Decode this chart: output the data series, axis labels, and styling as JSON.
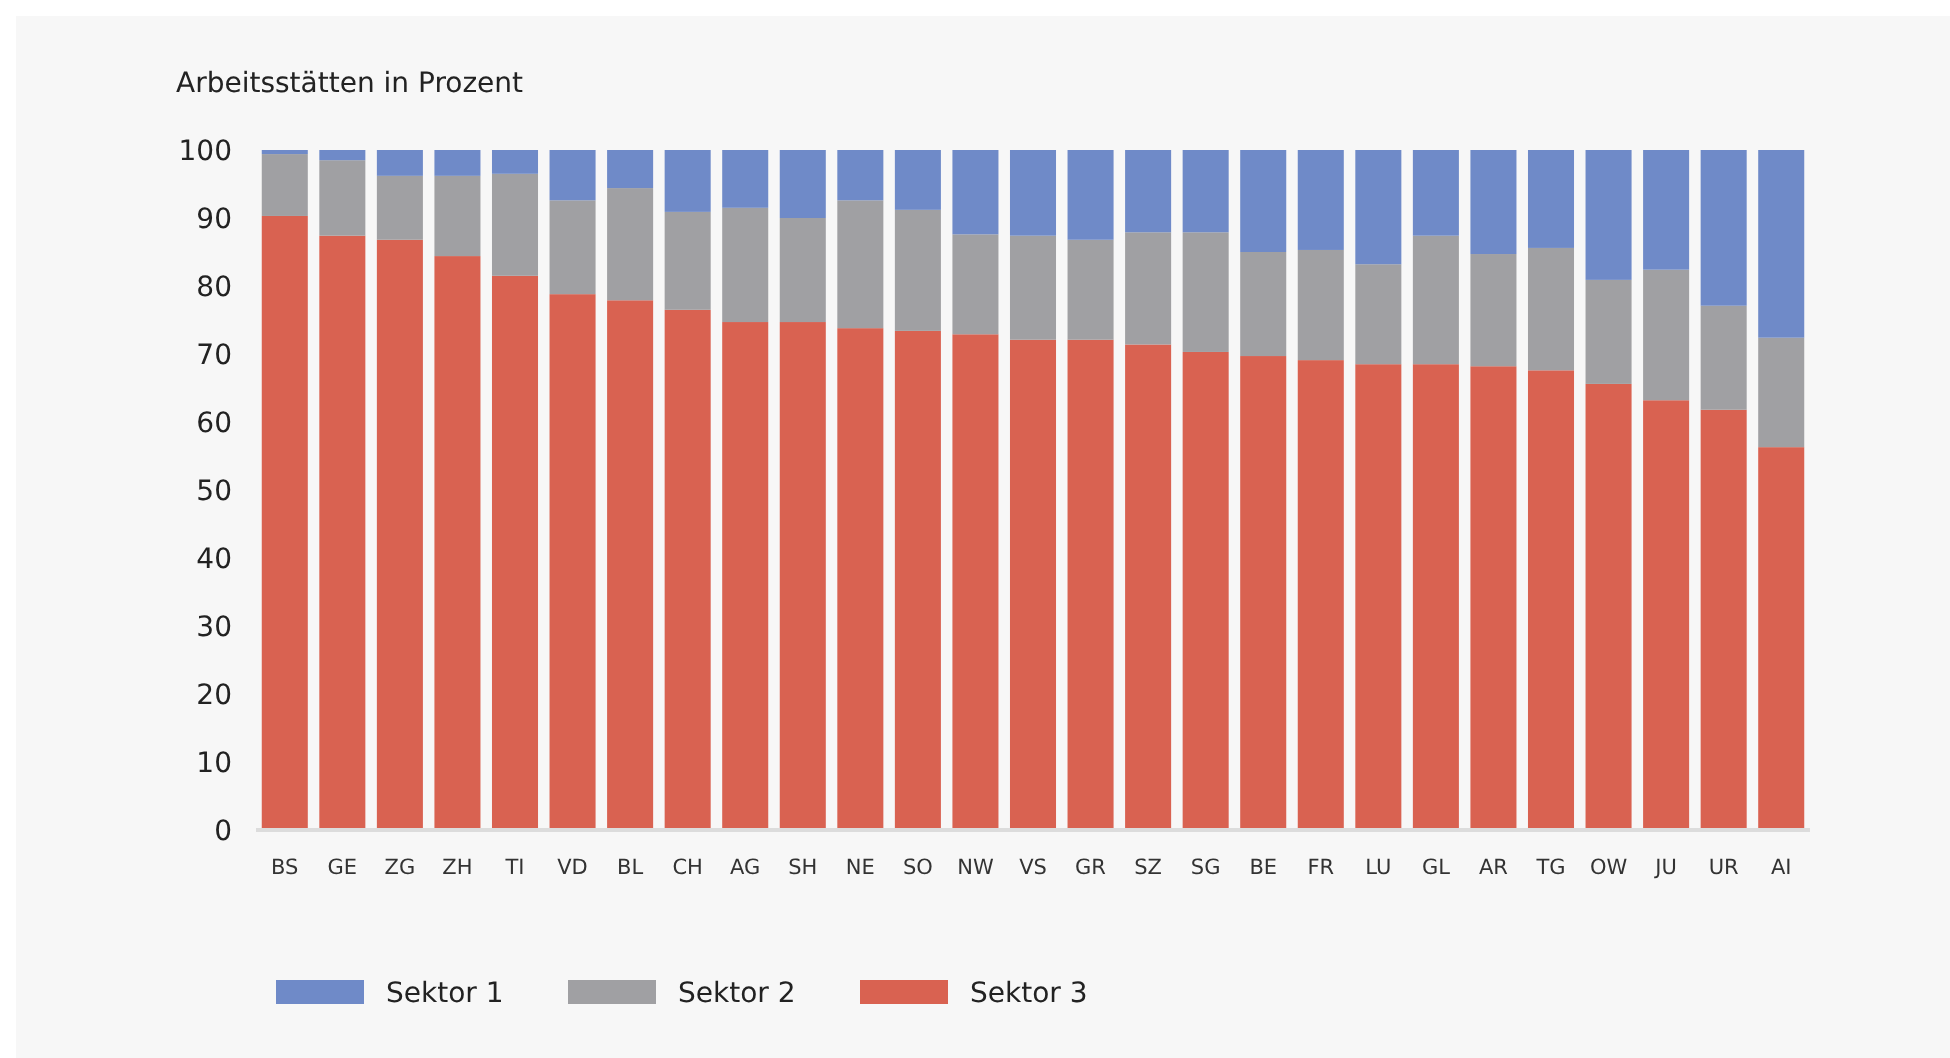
{
  "chart_data": {
    "type": "bar",
    "stacked": true,
    "title": "Arbeitsstätten in Prozent",
    "categories": [
      "BS",
      "GE",
      "ZG",
      "ZH",
      "TI",
      "VD",
      "BL",
      "CH",
      "AG",
      "SH",
      "NE",
      "SO",
      "NW",
      "VS",
      "GR",
      "SZ",
      "SG",
      "BE",
      "FR",
      "LU",
      "GL",
      "AR",
      "TG",
      "OW",
      "JU",
      "UR",
      "AI"
    ],
    "series": [
      {
        "name": "Sektor 3",
        "color": "#d96251",
        "values": [
          90.3,
          87.4,
          86.8,
          84.4,
          81.5,
          78.8,
          77.9,
          76.5,
          74.7,
          74.7,
          73.8,
          73.4,
          72.9,
          72.1,
          72.1,
          71.4,
          70.3,
          69.7,
          69.1,
          68.5,
          68.5,
          68.2,
          67.6,
          65.6,
          63.2,
          61.8,
          56.3
        ]
      },
      {
        "name": "Sektor 2",
        "color": "#a0a0a3",
        "values": [
          9.1,
          11.1,
          9.4,
          11.8,
          15,
          13.8,
          16.5,
          14.4,
          16.8,
          15.3,
          18.8,
          17.8,
          14.7,
          15.3,
          14.7,
          16.5,
          17.6,
          15.3,
          16.2,
          14.7,
          18.9,
          16.5,
          18,
          15.3,
          19.2,
          15.3,
          16.1
        ]
      },
      {
        "name": "Sektor 1",
        "color": "#6f8ac8",
        "values": [
          0.6,
          1.5,
          3.8,
          3.8,
          3.5,
          7.4,
          5.6,
          9.1,
          8.5,
          10,
          7.4,
          8.8,
          12.4,
          12.6,
          13.2,
          12.1,
          12.1,
          15,
          14.7,
          16.8,
          12.6,
          15.3,
          14.4,
          19.1,
          17.6,
          22.9,
          27.6
        ]
      }
    ],
    "ylim": [
      0,
      100
    ],
    "yticks": [
      0,
      10,
      20,
      30,
      40,
      50,
      60,
      70,
      80,
      90,
      100
    ],
    "legend": "bottom"
  }
}
